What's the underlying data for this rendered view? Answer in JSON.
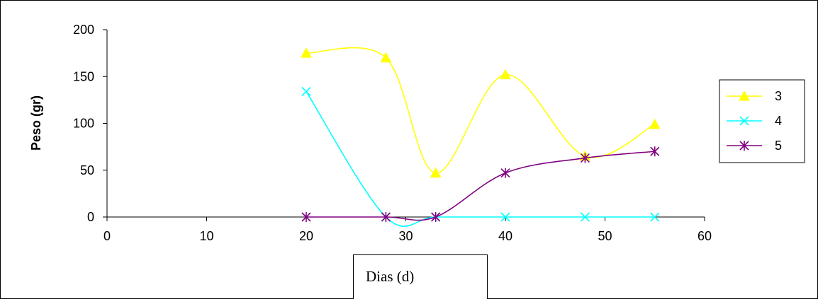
{
  "chart_data": {
    "type": "line",
    "title": "",
    "xlabel": "Dias (d)",
    "ylabel": "Peso (gr)",
    "xlim": [
      0,
      60
    ],
    "ylim": [
      0,
      200
    ],
    "x_ticks": [
      "0",
      "10",
      "20",
      "30",
      "40",
      "50",
      "60"
    ],
    "y_ticks": [
      "0",
      "50",
      "100",
      "150",
      "200"
    ],
    "grid": false,
    "legend_position": "right",
    "smoothed": true,
    "x": [
      20,
      28,
      33,
      40,
      48,
      55
    ],
    "series": [
      {
        "name": "3",
        "color": "#FFFF00",
        "marker": "triangle",
        "values": [
          175,
          170,
          47,
          152,
          65,
          99
        ]
      },
      {
        "name": "4",
        "color": "#00FFFF",
        "marker": "x",
        "values": [
          134,
          0,
          0,
          0,
          0,
          0
        ]
      },
      {
        "name": "5",
        "color": "#800080",
        "marker": "asterisk",
        "values": [
          0,
          0,
          0,
          47,
          63,
          70
        ]
      }
    ]
  }
}
